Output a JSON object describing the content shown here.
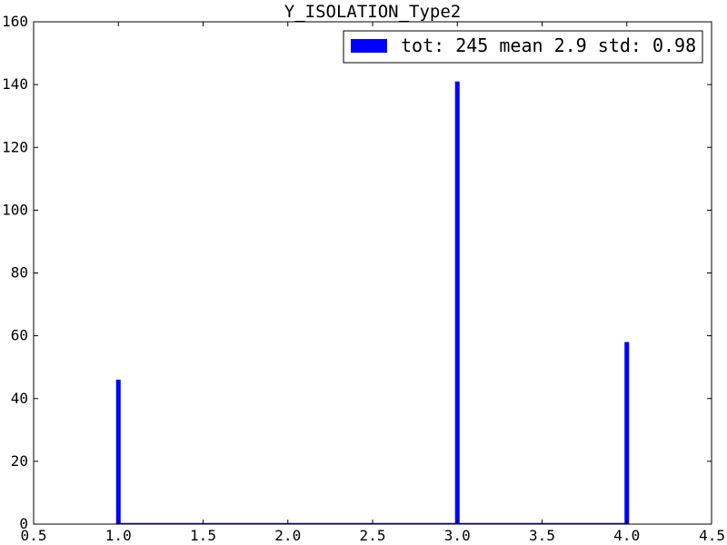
{
  "chart_data": {
    "type": "bar",
    "title": "Y_ISOLATION_Type2",
    "xlabel": "",
    "ylabel": "",
    "xlim": [
      0.5,
      4.5
    ],
    "ylim": [
      0,
      160
    ],
    "x_ticks": [
      "0.5",
      "1.0",
      "1.5",
      "2.0",
      "2.5",
      "3.0",
      "3.5",
      "4.0",
      "4.5"
    ],
    "y_ticks": [
      "0",
      "20",
      "40",
      "60",
      "80",
      "100",
      "120",
      "140",
      "160"
    ],
    "grid": false,
    "legend_position": "top-right",
    "series": [
      {
        "name": "tot: 245 mean 2.9 std: 0.98",
        "color": "#0000ff",
        "x": [
          1.0,
          3.0,
          4.0
        ],
        "values": [
          46,
          141,
          58
        ]
      }
    ]
  }
}
